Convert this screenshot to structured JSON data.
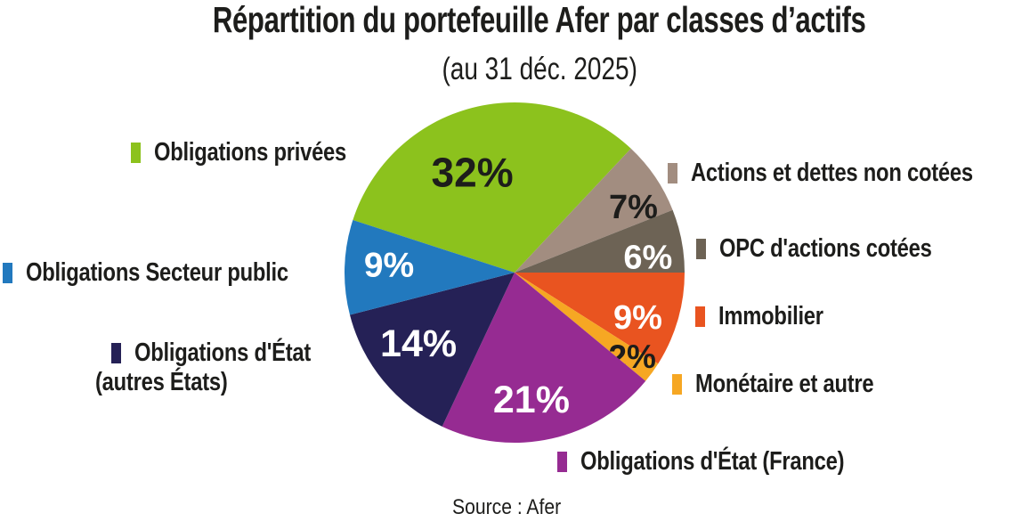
{
  "title": "Répartition du portefeuille Afer par classes d’actifs",
  "subtitle": "(au 31 déc. 2025)",
  "source": "Source : Afer",
  "text_color": "#1d1d1b",
  "chart_data": {
    "type": "pie",
    "title": "Répartition du portefeuille Afer par classes d’actifs",
    "subtitle": "(au 31 déc. 2025)",
    "source": "Source : Afer",
    "value_suffix": "%",
    "start_angle_clockwise_from_top_deg": 288,
    "legend_position": "around",
    "slices": [
      {
        "label": "Obligations privées",
        "value": 32,
        "color": "#8cc21d",
        "label_color": "#1d1d1b"
      },
      {
        "label": "Actions et dettes non cotées",
        "value": 7,
        "color": "#a28d80",
        "label_color": "#1d1d1b"
      },
      {
        "label": "OPC d'actions cotées",
        "value": 6,
        "color": "#6d6355",
        "label_color": "#ffffff"
      },
      {
        "label": "Immobilier",
        "value": 9,
        "color": "#e95420",
        "label_color": "#ffffff"
      },
      {
        "label": "Monétaire et autre",
        "value": 2,
        "color": "#f6a723",
        "label_color": "#1d1d1b"
      },
      {
        "label": "Obligations d'État (France)",
        "value": 21,
        "color": "#962b92",
        "label_color": "#ffffff"
      },
      {
        "label": "Obligations d'État (autres États)",
        "value": 14,
        "color": "#252156",
        "label_color": "#ffffff"
      },
      {
        "label": "Obligations Secteur public",
        "value": 9,
        "color": "#2279be",
        "label_color": "#ffffff"
      }
    ]
  },
  "legend": {
    "items": [
      {
        "lines": [
          "Obligations privées"
        ]
      },
      {
        "lines": [
          "Actions et dettes non cotées"
        ]
      },
      {
        "lines": [
          "OPC d'actions cotées"
        ]
      },
      {
        "lines": [
          "Immobilier"
        ]
      },
      {
        "lines": [
          "Monétaire et autre"
        ]
      },
      {
        "lines": [
          "Obligations d'État (France)"
        ]
      },
      {
        "lines": [
          "Obligations d'État",
          "(autres États)"
        ]
      },
      {
        "lines": [
          "Obligations Secteur public"
        ]
      }
    ]
  }
}
